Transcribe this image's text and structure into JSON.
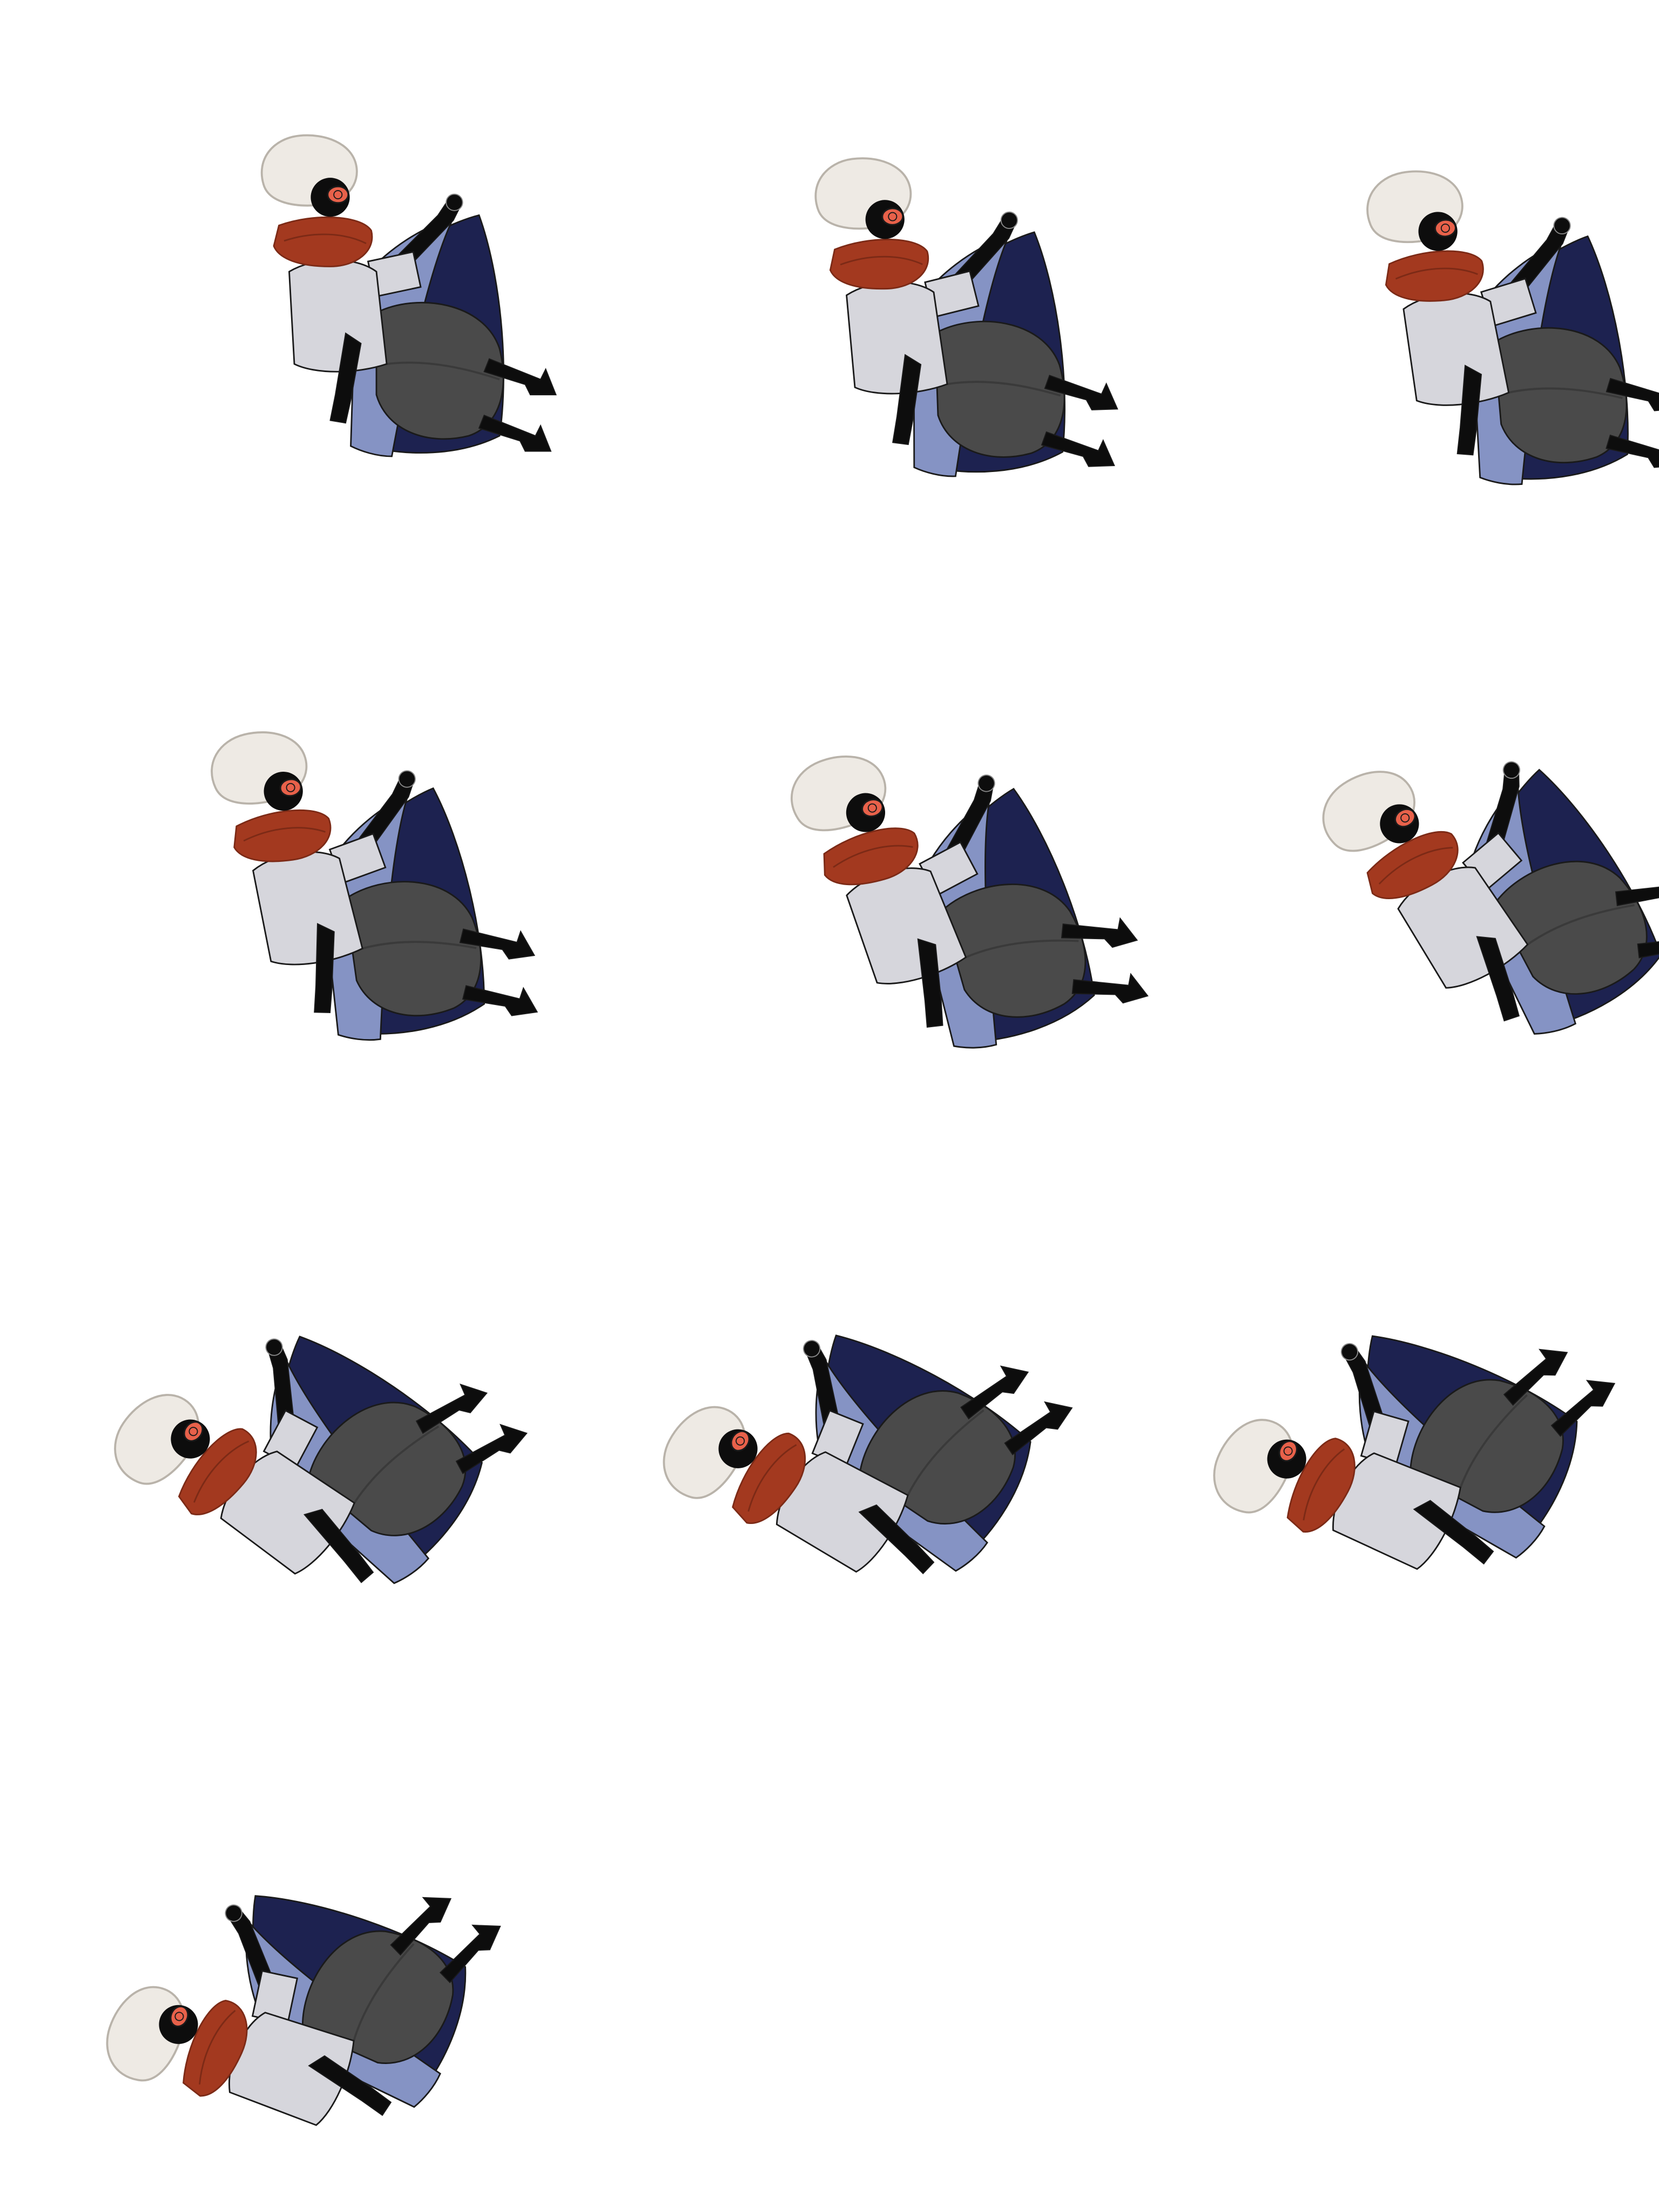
{
  "sprite_sheet": {
    "columns": 3,
    "frame_count": 10,
    "colors": {
      "hair": "#eeeae4",
      "hair_outline": "#b9b3aa",
      "scarf": "#a3391f",
      "scarf_dark": "#7c2a16",
      "shirt": "#d6d6dc",
      "skin": "#0d0d0d",
      "cape_light": "#8593c4",
      "cape_dark": "#1d2250",
      "pants": "#4a4a4a",
      "pants_dark": "#3a3a3a",
      "goggle": "#e8614a",
      "outline": "#1a1a1a"
    },
    "frames": [
      {
        "name": "fall-frame-1",
        "tilt": -22
      },
      {
        "name": "fall-frame-2",
        "tilt": -24
      },
      {
        "name": "fall-frame-3",
        "tilt": -27
      },
      {
        "name": "fall-frame-4",
        "tilt": -30
      },
      {
        "name": "fall-frame-5",
        "tilt": -38
      },
      {
        "name": "fall-frame-6",
        "tilt": -50
      },
      {
        "name": "fall-frame-7",
        "tilt": -72
      },
      {
        "name": "fall-frame-8",
        "tilt": -78
      },
      {
        "name": "fall-frame-9",
        "tilt": -84
      },
      {
        "name": "fall-frame-10",
        "tilt": -88
      }
    ]
  }
}
